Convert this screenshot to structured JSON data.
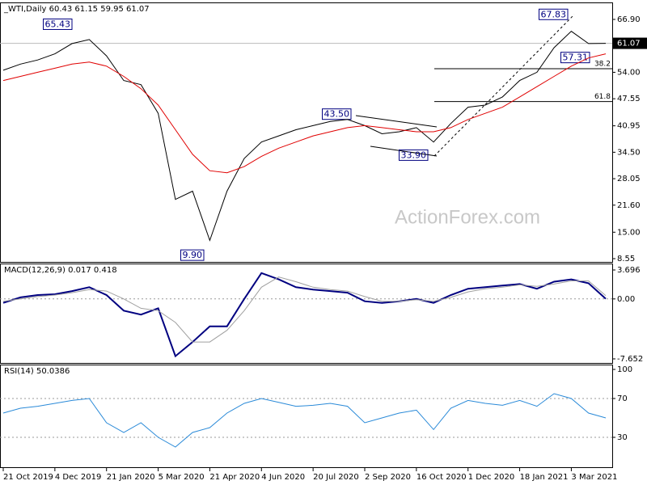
{
  "chart_data": [
    {
      "type": "line",
      "title": "_WTI,Daily 60.43 61.15 59.95 61.07",
      "watermark": "ActionForex.com",
      "categories": [
        "21 Oct 2019",
        null,
        null,
        "4 Dec 2019",
        null,
        null,
        "21 Jan 2020",
        null,
        null,
        "5 Mar 2020",
        null,
        null,
        "21 Apr 2020",
        null,
        null,
        "4 Jun 2020",
        null,
        null,
        "20 Jul 2020",
        null,
        null,
        "2 Sep 2020",
        null,
        null,
        "16 Oct 2020",
        null,
        null,
        "1 Dec 2020",
        null,
        null,
        "18 Jan 2021",
        null,
        null,
        "3 Mar 2021",
        null,
        null
      ],
      "series": [
        {
          "color": "#000000",
          "values": [
            54.5,
            56,
            57,
            58.5,
            61,
            62,
            58,
            52,
            51,
            44,
            23,
            25,
            13,
            25,
            33,
            37,
            38.5,
            40,
            41,
            42,
            42.5,
            41,
            39,
            39.5,
            40.5,
            37,
            41.5,
            45.5,
            46,
            48,
            52,
            54,
            60,
            64,
            61,
            61.07
          ]
        },
        {
          "color": "#e00000",
          "values": [
            52,
            53,
            54,
            55,
            56,
            56.5,
            55.5,
            53,
            50,
            46,
            40,
            34,
            30,
            29.5,
            31,
            33.5,
            35.5,
            37,
            38.5,
            39.5,
            40.5,
            41,
            40.5,
            40,
            39.5,
            39.5,
            40.5,
            42.5,
            44,
            45.5,
            48,
            50.5,
            53,
            55.5,
            57.5,
            58.5
          ]
        }
      ],
      "ylim": [
        7.76,
        71.04
      ],
      "yticks": [
        {
          "value": 66.9,
          "label": "66.90"
        },
        {
          "value": 54,
          "label": "54.00"
        },
        47.55,
        40.95,
        {
          "value": 34.5,
          "label": "34.50"
        },
        28.05,
        {
          "value": 21.6,
          "label": "21.60"
        },
        {
          "value": 15,
          "label": "15.00"
        },
        8.55
      ],
      "price_label": 61.07,
      "annotations": [
        65.43,
        67.83,
        57.31,
        {
          "value": 43.5,
          "label": "43.50"
        },
        {
          "value": 33.9,
          "label": "33.90"
        },
        {
          "value": 9.9,
          "label": "9.90"
        }
      ],
      "fib_levels": [
        38.2,
        61.8
      ]
    },
    {
      "type": "line",
      "title": "MACD(12,26,9) 0.017 0.418",
      "series": [
        {
          "color": "#000080",
          "values": [
            -0.5,
            0.2,
            0.5,
            0.6,
            1.0,
            1.5,
            0.5,
            -1.5,
            -2,
            -1.2,
            -7.3,
            -5.5,
            -3.5,
            -3.5,
            0,
            3.3,
            2.5,
            1.5,
            1.2,
            1.0,
            0.8,
            -0.3,
            -0.5,
            -0.3,
            0,
            -0.5,
            0.5,
            1.3,
            1.5,
            1.7,
            1.9,
            1.3,
            2.2,
            2.5,
            2.0,
            0.017
          ]
        },
        {
          "color": "#a0a0a0",
          "values": [
            -0.3,
            0,
            0.3,
            0.5,
            0.8,
            1.2,
            1.0,
            0,
            -1.2,
            -1.5,
            -3,
            -5.5,
            -5.5,
            -4,
            -1.5,
            1.5,
            2.8,
            2.2,
            1.5,
            1.2,
            1,
            0.3,
            -0.3,
            -0.3,
            -0.1,
            -0.3,
            0.2,
            0.9,
            1.3,
            1.5,
            1.8,
            1.6,
            1.9,
            2.3,
            2.3,
            0.418
          ]
        }
      ],
      "ylim": [
        -8.17,
        4.52
      ],
      "yticks": [
        3.696,
        {
          "value": 0,
          "label": "0.00"
        },
        -7.652
      ],
      "levels": [
        0
      ]
    },
    {
      "type": "line",
      "title": "RSI(14) 50.0386",
      "series": [
        {
          "color": "#2a8ad8",
          "values": [
            55,
            60,
            62,
            65,
            68,
            70,
            45,
            35,
            45,
            30,
            20,
            35,
            40,
            55,
            65,
            70,
            66,
            62,
            63,
            65,
            62,
            45,
            50,
            55,
            58,
            38,
            60,
            68,
            65,
            63,
            68,
            62,
            75,
            70,
            55,
            50.04
          ]
        }
      ],
      "ylim": [
        -0.8,
        105
      ],
      "yticks": [
        100,
        70,
        30
      ],
      "levels": [
        70,
        30
      ]
    }
  ]
}
